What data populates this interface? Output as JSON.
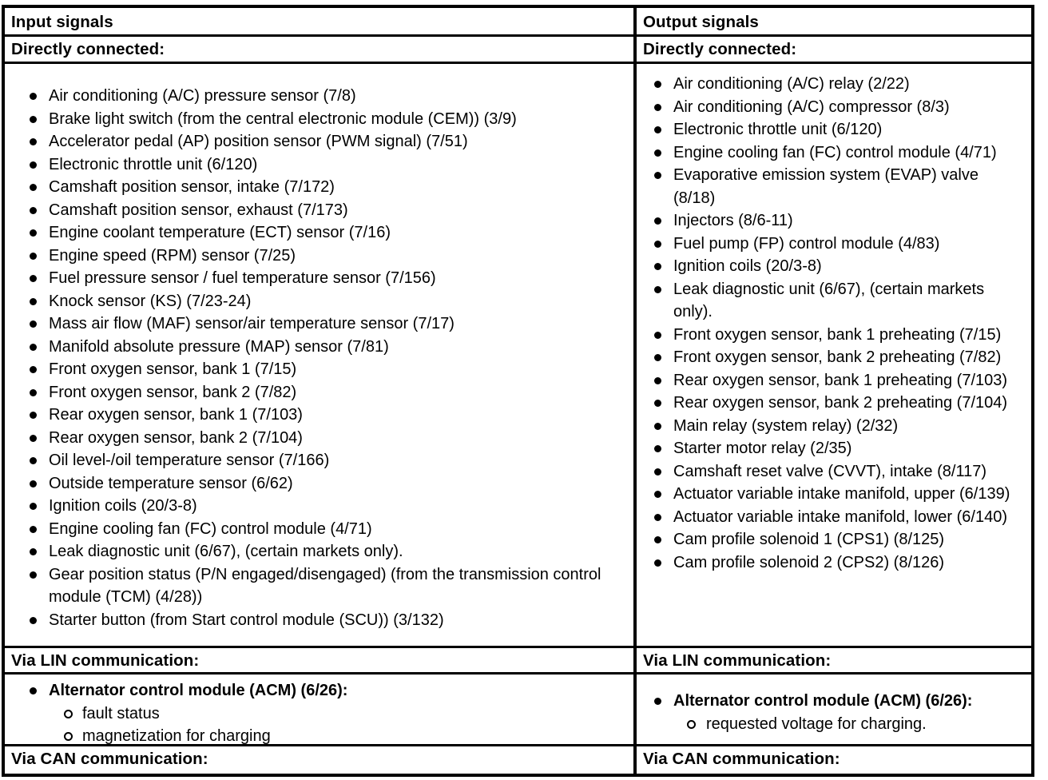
{
  "icons": {
    "bullet": "filled-circle",
    "sub_bullet": "open-circle"
  },
  "columns": [
    {
      "header": "Input signals",
      "directly_connected_label": "Directly connected:",
      "direct_items": [
        "Air conditioning (A/C) pressure sensor (7/8)",
        "Brake light switch (from the central electronic module (CEM)) (3/9)",
        "Accelerator pedal (AP) position sensor (PWM signal) (7/51)",
        "Electronic throttle unit (6/120)",
        "Camshaft position sensor, intake (7/172)",
        "Camshaft position sensor, exhaust (7/173)",
        "Engine coolant temperature (ECT) sensor (7/16)",
        "Engine speed (RPM) sensor (7/25)",
        "Fuel pressure sensor / fuel temperature sensor (7/156)",
        "Knock sensor (KS) (7/23-24)",
        "Mass air flow (MAF) sensor/air temperature sensor (7/17)",
        "Manifold absolute pressure (MAP) sensor (7/81)",
        "Front oxygen sensor, bank 1 (7/15)",
        "Front oxygen sensor, bank 2 (7/82)",
        "Rear oxygen sensor, bank 1 (7/103)",
        "Rear oxygen sensor, bank 2 (7/104)",
        "Oil level-/oil temperature sensor (7/166)",
        "Outside temperature sensor (6/62)",
        "Ignition coils (20/3-8)",
        "Engine cooling fan (FC) control module (4/71)",
        "Leak diagnostic unit (6/67), (certain markets only).",
        "Gear position status (P/N engaged/disengaged) (from the transmission control module (TCM) (4/28))",
        "Starter button (from Start control module (SCU)) (3/132)"
      ],
      "via_lin_label": "Via LIN communication:",
      "lin_module": "Alternator control module (ACM) (6/26):",
      "lin_sub_items": [
        "fault status",
        "magnetization for charging"
      ],
      "via_can_label": "Via CAN communication:"
    },
    {
      "header": "Output signals",
      "directly_connected_label": "Directly connected:",
      "direct_items": [
        "Air conditioning (A/C) relay (2/22)",
        "Air conditioning (A/C) compressor (8/3)",
        "Electronic throttle unit (6/120)",
        "Engine cooling fan (FC) control module (4/71)",
        "Evaporative emission system (EVAP) valve (8/18)",
        "Injectors (8/6-11)",
        "Fuel pump (FP) control module (4/83)",
        "Ignition coils (20/3-8)",
        "Leak diagnostic unit (6/67), (certain markets only).",
        "Front oxygen sensor, bank 1 preheating (7/15)",
        "Front oxygen sensor, bank 2 preheating (7/82)",
        "Rear oxygen sensor, bank 1 preheating (7/103)",
        "Rear oxygen sensor, bank 2 preheating (7/104)",
        "Main relay (system relay) (2/32)",
        "Starter motor relay (2/35)",
        "Camshaft reset valve (CVVT), intake (8/117)",
        "Actuator variable intake manifold, upper (6/139)",
        "Actuator variable intake manifold, lower (6/140)",
        "Cam profile solenoid 1 (CPS1) (8/125)",
        "Cam profile solenoid 2 (CPS2) (8/126)"
      ],
      "via_lin_label": "Via LIN communication:",
      "lin_module": "Alternator control module (ACM) (6/26):",
      "lin_sub_items": [
        "requested voltage for charging."
      ],
      "via_can_label": "Via CAN communication:"
    }
  ]
}
